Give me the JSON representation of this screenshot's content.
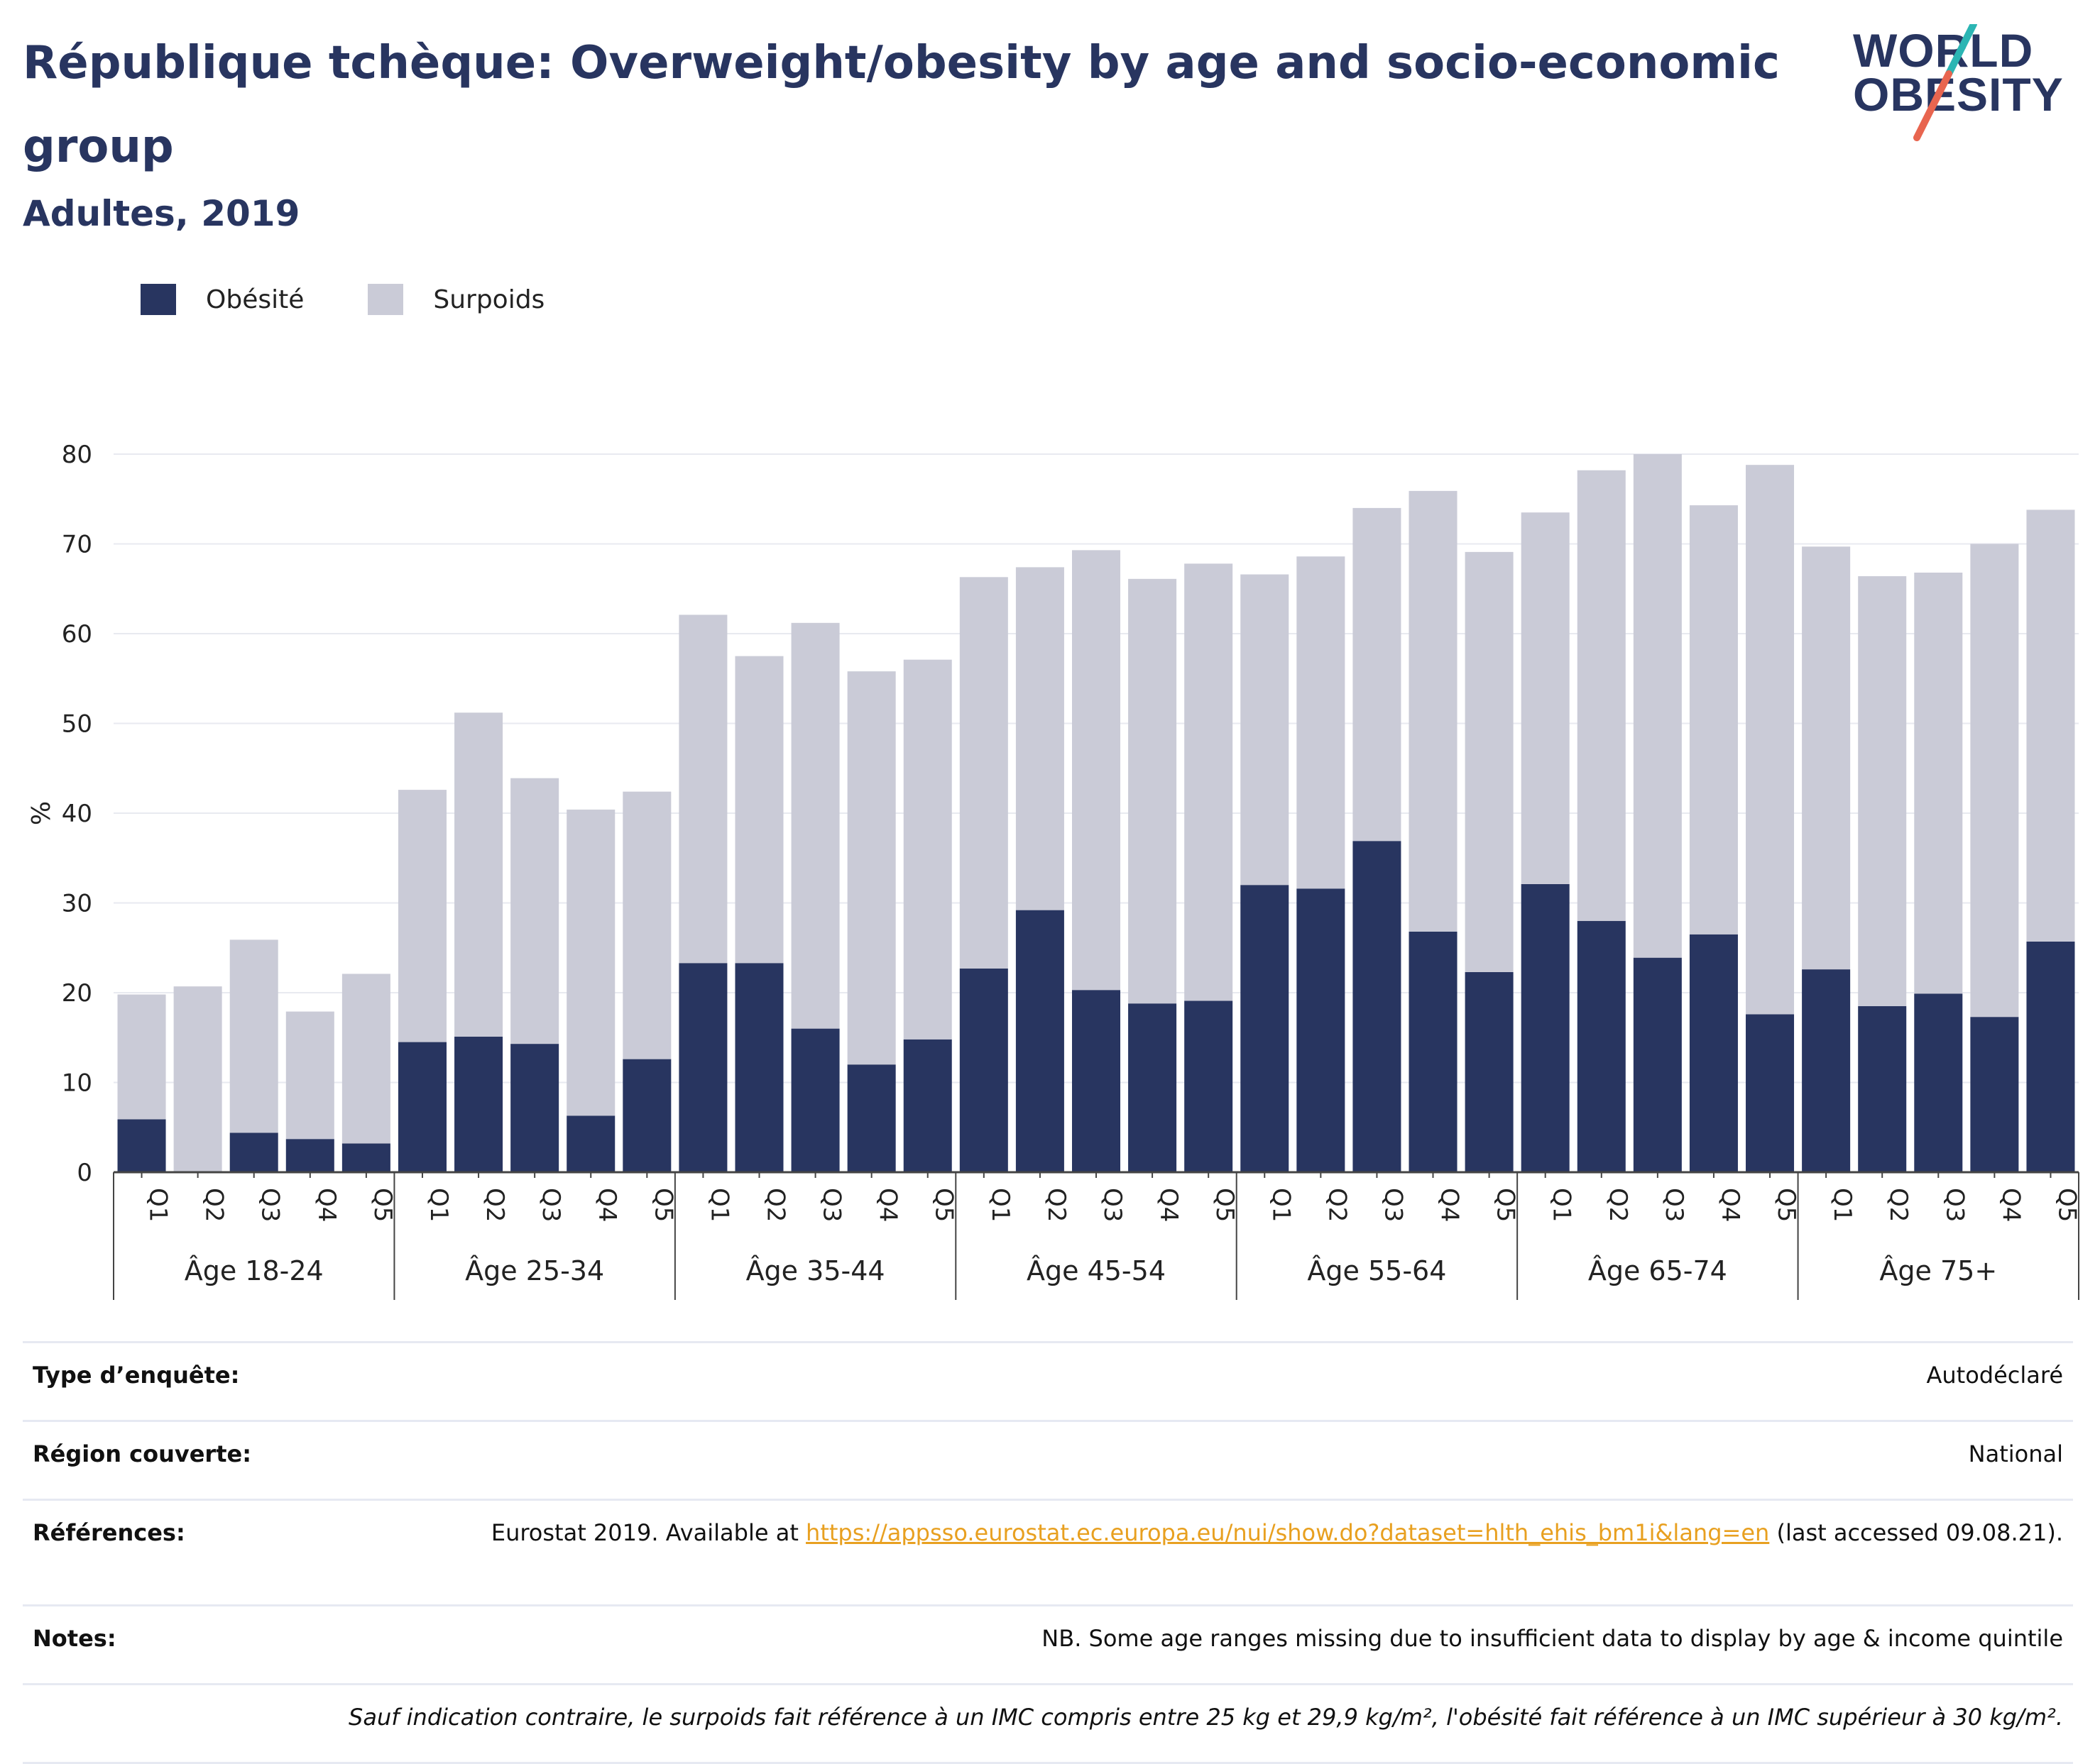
{
  "header": {
    "title": "République tchèque: Overweight/obesity by age and socio-economic group",
    "subtitle": "Adultes, 2019"
  },
  "logo": {
    "line1": "WORLD",
    "line2": "OBESITY"
  },
  "legend": [
    {
      "label": "Obésité",
      "color": "#283560"
    },
    {
      "label": "Surpoids",
      "color": "#cacbd7"
    }
  ],
  "chart_data": {
    "type": "bar",
    "stacked": true,
    "ylabel": "%",
    "ylim": [
      0,
      80
    ],
    "yticks": [
      0,
      10,
      20,
      30,
      40,
      50,
      60,
      70,
      80
    ],
    "grid": true,
    "legend_position": "top-left",
    "groups": [
      "Âge 18-24",
      "Âge 25-34",
      "Âge 35-44",
      "Âge 45-54",
      "Âge 55-64",
      "Âge 65-74",
      "Âge 75+"
    ],
    "categories": [
      "Q1",
      "Q2",
      "Q3",
      "Q4",
      "Q5"
    ],
    "series": [
      {
        "name": "Obésité",
        "color": "#283560",
        "values": [
          [
            5.9,
            0,
            4.4,
            3.7,
            3.2
          ],
          [
            14.5,
            15.1,
            14.3,
            6.3,
            12.6
          ],
          [
            23.3,
            23.3,
            16.0,
            12.0,
            14.8
          ],
          [
            22.7,
            29.2,
            20.3,
            18.8,
            19.1
          ],
          [
            32.0,
            31.6,
            36.9,
            26.8,
            22.3
          ],
          [
            32.1,
            28.0,
            23.9,
            26.5,
            17.6
          ],
          [
            22.6,
            18.5,
            19.9,
            17.3,
            25.7
          ]
        ]
      },
      {
        "name": "Surpoids",
        "color": "#cacbd7",
        "values": [
          [
            13.9,
            20.7,
            21.5,
            14.2,
            18.9
          ],
          [
            28.1,
            36.1,
            29.6,
            34.1,
            29.8
          ],
          [
            38.8,
            34.2,
            45.2,
            43.8,
            42.3
          ],
          [
            43.6,
            38.2,
            49.0,
            47.3,
            48.7
          ],
          [
            34.6,
            37.0,
            37.1,
            49.1,
            46.8
          ],
          [
            41.4,
            50.2,
            56.1,
            47.8,
            61.2
          ],
          [
            47.1,
            47.9,
            46.9,
            52.7,
            48.1
          ]
        ]
      }
    ]
  },
  "info": {
    "survey_label": "Type d’enquête:",
    "survey_value": "Autodéclaré",
    "region_label": "Région couverte:",
    "region_value": "National",
    "refs_label": "Références:",
    "refs_prefix": "Eurostat 2019. Available at",
    "refs_link": "https://appsso.eurostat.ec.europa.eu/nui/show.do?dataset=hlth_ehis_bm1i&lang=en",
    "refs_suffix": "(last accessed 09.08.21).",
    "notes_label": "Notes:",
    "notes_value": "NB. Some age ranges missing due to insufficient data to display by age & income quintile",
    "footnote": "Sauf indication contraire, le surpoids fait référence à un IMC compris entre 25 kg et 29,9 kg/m², l'obésité fait référence à un IMC supérieur à 30 kg/m²."
  }
}
